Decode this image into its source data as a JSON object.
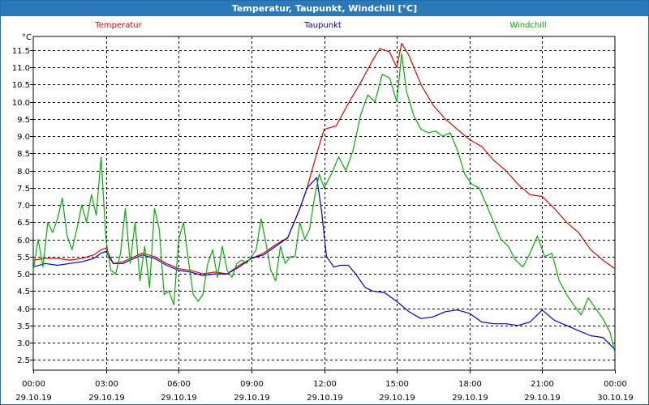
{
  "window": {
    "title": "Temperatur, Taupunkt, Windchill [°C]"
  },
  "chart_data": {
    "type": "line",
    "title": "Temperatur, Taupunkt, Windchill [°C]",
    "ylabel": "°C",
    "xlabel": "",
    "ylim": [
      2.2,
      11.9
    ],
    "xlim": [
      0,
      24
    ],
    "grid": true,
    "yticks": [
      "2.5",
      "3.0",
      "3.5",
      "4.0",
      "4.5",
      "5.0",
      "5.5",
      "6.0",
      "6.5",
      "7.0",
      "7.5",
      "8.0",
      "8.5",
      "9.0",
      "9.5",
      "10.0",
      "10.5",
      "11.0",
      "11.5"
    ],
    "xticks": [
      {
        "x": 0,
        "time": "00:00",
        "date": "29.10.19"
      },
      {
        "x": 3,
        "time": "03:00",
        "date": "29.10.19"
      },
      {
        "x": 6,
        "time": "06:00",
        "date": "29.10.19"
      },
      {
        "x": 9,
        "time": "09:00",
        "date": "29.10.19"
      },
      {
        "x": 12,
        "time": "12:00",
        "date": "29.10.19"
      },
      {
        "x": 15,
        "time": "15:00",
        "date": "29.10.19"
      },
      {
        "x": 18,
        "time": "18:00",
        "date": "29.10.19"
      },
      {
        "x": 21,
        "time": "21:00",
        "date": "29.10.19"
      },
      {
        "x": 24,
        "time": "00:00",
        "date": "30.10.19"
      }
    ],
    "series": [
      {
        "name": "Temperatur",
        "color": "#e00000",
        "x": [
          0,
          0.5,
          1,
          1.5,
          2,
          2.5,
          2.8,
          3.0,
          3.3,
          3.7,
          4.0,
          4.5,
          5.0,
          5.5,
          6.0,
          6.5,
          7.0,
          7.5,
          8.0,
          8.5,
          9.0,
          9.5,
          10.0,
          10.5,
          11.0,
          11.3,
          11.7,
          12.0,
          12.5,
          13.0,
          13.5,
          14.0,
          14.3,
          14.7,
          15.0,
          15.2,
          15.5,
          16.0,
          16.5,
          17.0,
          17.5,
          18.0,
          18.5,
          19.0,
          19.5,
          20.0,
          20.5,
          21.0,
          21.5,
          22.0,
          22.5,
          23.0,
          23.5,
          24.0
        ],
        "values": [
          5.4,
          5.45,
          5.45,
          5.4,
          5.45,
          5.55,
          5.7,
          5.75,
          5.3,
          5.35,
          5.45,
          5.6,
          5.5,
          5.3,
          5.15,
          5.1,
          5.0,
          5.05,
          5.0,
          5.25,
          5.45,
          5.6,
          5.85,
          6.05,
          6.9,
          7.5,
          8.5,
          9.2,
          9.3,
          9.95,
          10.55,
          11.2,
          11.55,
          11.45,
          11.0,
          11.7,
          11.35,
          10.5,
          9.9,
          9.5,
          9.2,
          8.9,
          8.7,
          8.3,
          8.0,
          7.6,
          7.3,
          7.25,
          6.9,
          6.5,
          6.2,
          5.7,
          5.4,
          5.15
        ]
      },
      {
        "name": "Taupunkt",
        "color": "#0000c8",
        "x": [
          0,
          0.5,
          1,
          1.5,
          2,
          2.5,
          2.8,
          3.0,
          3.3,
          3.7,
          4.0,
          4.5,
          5.0,
          5.5,
          6.0,
          6.5,
          7.0,
          7.5,
          8.0,
          8.5,
          9.0,
          9.5,
          10.0,
          10.5,
          11.0,
          11.3,
          11.7,
          11.9,
          12.1,
          12.4,
          12.7,
          13.0,
          13.3,
          13.7,
          14.0,
          14.5,
          15.0,
          15.5,
          16.0,
          16.5,
          17.0,
          17.5,
          18.0,
          18.5,
          19.0,
          19.5,
          20.0,
          20.5,
          21.0,
          21.5,
          22.0,
          22.5,
          23.0,
          23.5,
          24.0
        ],
        "values": [
          5.2,
          5.3,
          5.25,
          5.3,
          5.35,
          5.45,
          5.6,
          5.65,
          5.3,
          5.3,
          5.4,
          5.55,
          5.45,
          5.25,
          5.1,
          5.05,
          4.95,
          5.0,
          5.0,
          5.2,
          5.45,
          5.55,
          5.8,
          6.05,
          6.9,
          7.5,
          7.8,
          6.8,
          5.5,
          5.2,
          5.25,
          5.25,
          5.0,
          4.6,
          4.5,
          4.45,
          4.2,
          3.9,
          3.7,
          3.75,
          3.9,
          3.95,
          3.85,
          3.6,
          3.55,
          3.55,
          3.5,
          3.6,
          3.95,
          3.65,
          3.5,
          3.35,
          3.2,
          3.15,
          2.8
        ]
      },
      {
        "name": "Windchill",
        "color": "#00b000",
        "x": [
          0,
          0.2,
          0.4,
          0.6,
          0.8,
          1.0,
          1.2,
          1.4,
          1.6,
          1.8,
          2.0,
          2.2,
          2.4,
          2.6,
          2.8,
          3.0,
          3.2,
          3.4,
          3.6,
          3.8,
          4.0,
          4.2,
          4.4,
          4.6,
          4.8,
          5.0,
          5.2,
          5.4,
          5.6,
          5.8,
          6.0,
          6.2,
          6.4,
          6.6,
          6.8,
          7.0,
          7.2,
          7.4,
          7.6,
          7.8,
          8.0,
          8.2,
          8.4,
          8.6,
          8.8,
          9.0,
          9.2,
          9.4,
          9.6,
          9.8,
          10.0,
          10.2,
          10.4,
          10.6,
          10.8,
          11.0,
          11.2,
          11.4,
          11.6,
          11.8,
          12.0,
          12.3,
          12.6,
          12.9,
          13.2,
          13.5,
          13.8,
          14.1,
          14.4,
          14.7,
          15.0,
          15.2,
          15.4,
          15.7,
          16.0,
          16.3,
          16.6,
          16.9,
          17.2,
          17.5,
          17.8,
          18.1,
          18.4,
          18.7,
          19.0,
          19.3,
          19.6,
          19.9,
          20.2,
          20.5,
          20.8,
          21.1,
          21.4,
          21.7,
          22.0,
          22.3,
          22.6,
          22.9,
          23.2,
          23.5,
          23.8,
          24.0
        ],
        "values": [
          5.1,
          6.0,
          5.2,
          6.5,
          6.2,
          6.6,
          7.2,
          6.1,
          5.7,
          6.3,
          7.0,
          6.5,
          7.3,
          6.7,
          8.4,
          6.0,
          5.1,
          5.0,
          5.6,
          6.9,
          5.3,
          6.5,
          4.8,
          5.8,
          4.6,
          6.9,
          6.3,
          4.4,
          4.5,
          4.1,
          6.0,
          6.5,
          5.4,
          4.4,
          4.2,
          4.4,
          5.3,
          5.7,
          4.9,
          5.8,
          5.1,
          4.9,
          5.3,
          5.4,
          5.3,
          5.5,
          5.7,
          6.6,
          5.9,
          5.1,
          4.8,
          5.8,
          5.3,
          5.5,
          5.5,
          6.5,
          6.0,
          6.3,
          7.2,
          7.9,
          7.5,
          7.9,
          8.4,
          8.0,
          8.6,
          9.6,
          10.2,
          10.0,
          10.8,
          10.7,
          10.0,
          11.4,
          10.3,
          9.6,
          9.2,
          9.1,
          9.15,
          9.0,
          9.1,
          8.6,
          7.9,
          7.6,
          7.5,
          7.0,
          6.5,
          6.0,
          5.8,
          5.4,
          5.2,
          5.6,
          6.1,
          5.5,
          5.6,
          4.8,
          4.4,
          4.1,
          3.8,
          4.3,
          4.0,
          3.7,
          3.3,
          2.7
        ]
      }
    ]
  }
}
